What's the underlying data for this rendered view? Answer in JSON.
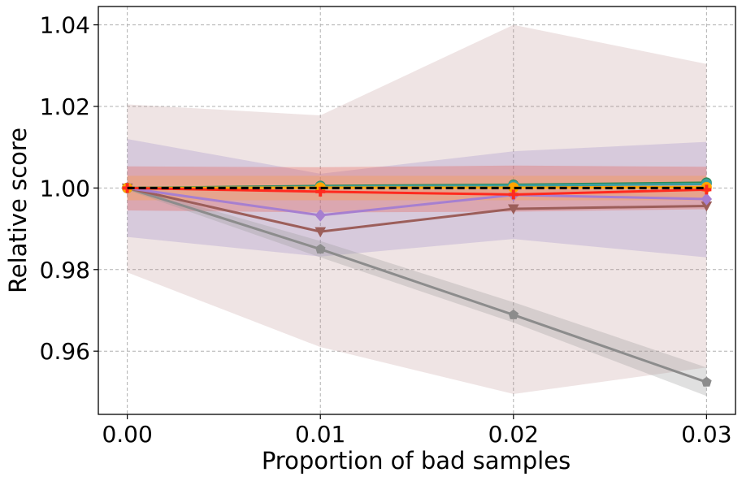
{
  "chart_data": {
    "type": "line",
    "title": "",
    "xlabel": "Proportion of bad samples",
    "ylabel": "Relative score",
    "x": [
      0.0,
      0.01,
      0.02,
      0.03
    ],
    "x_tick_labels": [
      "0.00",
      "0.01",
      "0.02",
      "0.03"
    ],
    "y_tick_values": [
      0.96,
      0.98,
      1.0,
      1.02,
      1.04
    ],
    "y_tick_labels": [
      "0.96",
      "0.98",
      "1.00",
      "1.02",
      "1.04"
    ],
    "xlim": [
      -0.0015,
      0.0315
    ],
    "ylim": [
      0.9445,
      1.0445
    ],
    "grid": true,
    "reference_line": {
      "y": 1.0,
      "color": "#000000",
      "style": "dashed"
    },
    "bands": [
      {
        "name": "pink-wide band",
        "color": "#b07a7a",
        "opacity": 0.2,
        "upper": [
          1.0205,
          1.0178,
          1.04,
          1.0304
        ],
        "lower": [
          0.9793,
          0.961,
          0.9495,
          0.956
        ]
      },
      {
        "name": "purple band",
        "color": "#8e7cc3",
        "opacity": 0.25,
        "upper": [
          1.012,
          1.0035,
          1.009,
          1.0113
        ],
        "lower": [
          0.988,
          0.9832,
          0.9875,
          0.983
        ]
      },
      {
        "name": "red band",
        "color": "#e6554d",
        "opacity": 0.3,
        "upper": [
          1.0053,
          1.0051,
          1.0055,
          1.0052
        ],
        "lower": [
          0.9945,
          0.994,
          0.9942,
          0.9948
        ]
      },
      {
        "name": "orange band",
        "color": "#ff9f3a",
        "opacity": 0.3,
        "upper": [
          1.003,
          1.003,
          1.003,
          1.003
        ],
        "lower": [
          0.997,
          0.997,
          0.997,
          0.997
        ]
      },
      {
        "name": "gray band",
        "color": "#999999",
        "opacity": 0.3,
        "upper": [
          1.0005,
          0.987,
          0.972,
          0.956
        ],
        "lower": [
          0.9995,
          0.983,
          0.967,
          0.949
        ]
      }
    ],
    "series": [
      {
        "name": "gray",
        "color": "#8c8c8c",
        "marker": "pentagon",
        "values": [
          1.0,
          0.985,
          0.9689,
          0.9524
        ]
      },
      {
        "name": "brown",
        "color": "#9c5e5a",
        "marker": "triangle-down",
        "values": [
          1.0,
          0.9893,
          0.9949,
          0.9956
        ]
      },
      {
        "name": "purple",
        "color": "#a67fd0",
        "marker": "diamond",
        "values": [
          1.0,
          0.9933,
          0.9983,
          0.9973
        ]
      },
      {
        "name": "green",
        "color": "#2e8b57",
        "marker": "circle",
        "values": [
          1.0,
          1.0005,
          1.0008,
          1.0013
        ]
      },
      {
        "name": "teal",
        "color": "#3a9e9e",
        "marker": "circle",
        "values": [
          1.0,
          1.0003,
          1.0006,
          1.001
        ]
      },
      {
        "name": "orange",
        "color": "#ffa500",
        "marker": "circle",
        "values": [
          1.0,
          1.0001,
          1.0001,
          1.0002
        ]
      },
      {
        "name": "red",
        "color": "#ff2a1f",
        "marker": "plus",
        "values": [
          1.0,
          0.9991,
          0.9984,
          0.9996
        ]
      }
    ]
  }
}
